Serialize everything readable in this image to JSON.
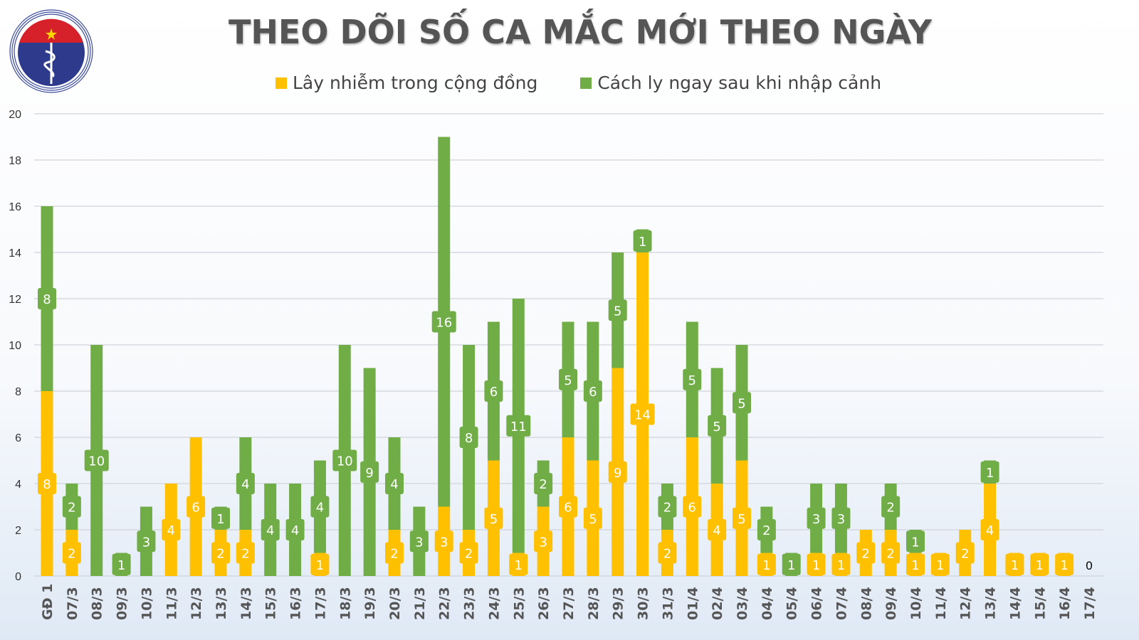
{
  "chart_data": {
    "type": "bar",
    "stacked": true,
    "title": "THEO DÕI SỐ CA MẮC MỚI THEO NGÀY",
    "xlabel": "",
    "ylabel": "",
    "ylim": [
      0,
      20
    ],
    "yticks": [
      0,
      2,
      4,
      6,
      8,
      10,
      12,
      14,
      16,
      18,
      20
    ],
    "grid": true,
    "legend_position": "top-center",
    "categories": [
      "GĐ 1",
      "07/3",
      "08/3",
      "09/3",
      "10/3",
      "11/3",
      "12/3",
      "13/3",
      "14/3",
      "15/3",
      "16/3",
      "17/3",
      "18/3",
      "19/3",
      "20/3",
      "21/3",
      "22/3",
      "23/3",
      "24/3",
      "25/3",
      "26/3",
      "27/3",
      "28/3",
      "29/3",
      "30/3",
      "31/3",
      "01/4",
      "02/4",
      "03/4",
      "04/4",
      "05/4",
      "06/4",
      "07/4",
      "08/4",
      "09/4",
      "10/4",
      "11/4",
      "12/4",
      "13/4",
      "14/4",
      "15/4",
      "16/4",
      "17/4"
    ],
    "series": [
      {
        "name": "Lây nhiễm trong cộng đồng",
        "color": "#FFC000",
        "values": [
          8,
          2,
          0,
          0,
          0,
          4,
          6,
          2,
          2,
          0,
          0,
          1,
          0,
          0,
          2,
          0,
          3,
          2,
          5,
          1,
          3,
          6,
          5,
          9,
          14,
          2,
          6,
          4,
          5,
          1,
          0,
          1,
          1,
          2,
          2,
          1,
          1,
          2,
          4,
          1,
          1,
          1,
          0
        ]
      },
      {
        "name": "Cách ly ngay sau khi nhập cảnh",
        "color": "#70AD47",
        "values": [
          8,
          2,
          10,
          1,
          3,
          0,
          0,
          1,
          4,
          4,
          4,
          4,
          10,
          9,
          4,
          3,
          16,
          8,
          6,
          11,
          2,
          5,
          6,
          5,
          1,
          2,
          5,
          5,
          5,
          2,
          1,
          3,
          3,
          0,
          2,
          1,
          0,
          0,
          1,
          0,
          0,
          0,
          0
        ]
      }
    ],
    "zero_label": "0"
  },
  "logo": {
    "text_top": "BỘ Y TẾ",
    "text_bottom": "MINISTRY OF HEALTH"
  }
}
